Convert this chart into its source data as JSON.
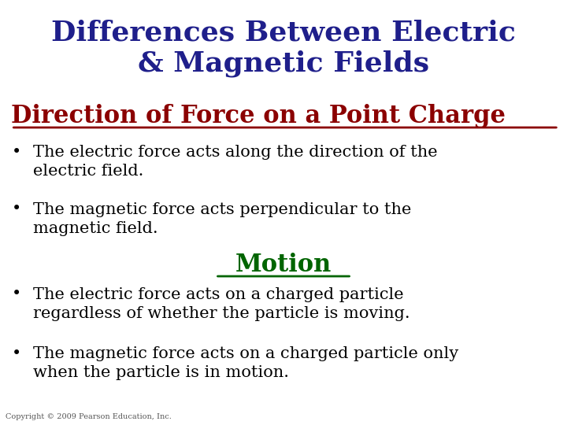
{
  "title_line1": "Differences Between Electric",
  "title_line2": "& Magnetic Fields",
  "title_color": "#1F1F8B",
  "subtitle": "Direction of Force on a Point Charge",
  "subtitle_color": "#8B0000",
  "section2_title": "Motion",
  "section2_color": "#006400",
  "bullet1_line1": "The electric force acts along the direction of the",
  "bullet1_line2": "electric field.",
  "bullet2_line1": "The magnetic force acts perpendicular to the",
  "bullet2_line2": "magnetic field.",
  "bullet3_line1": "The electric force acts on a charged particle",
  "bullet3_line2": "regardless of whether the particle is moving.",
  "bullet4_line1": "The magnetic force acts on a charged particle only",
  "bullet4_line2": "when the particle is in motion.",
  "copyright": "Copyright © 2009 Pearson Education, Inc.",
  "bg_color": "#FFFFFF",
  "body_color": "#000000",
  "body_fontsize": 15,
  "title_fontsize": 26,
  "subtitle_fontsize": 22,
  "section2_fontsize": 22,
  "copyright_fontsize": 7
}
